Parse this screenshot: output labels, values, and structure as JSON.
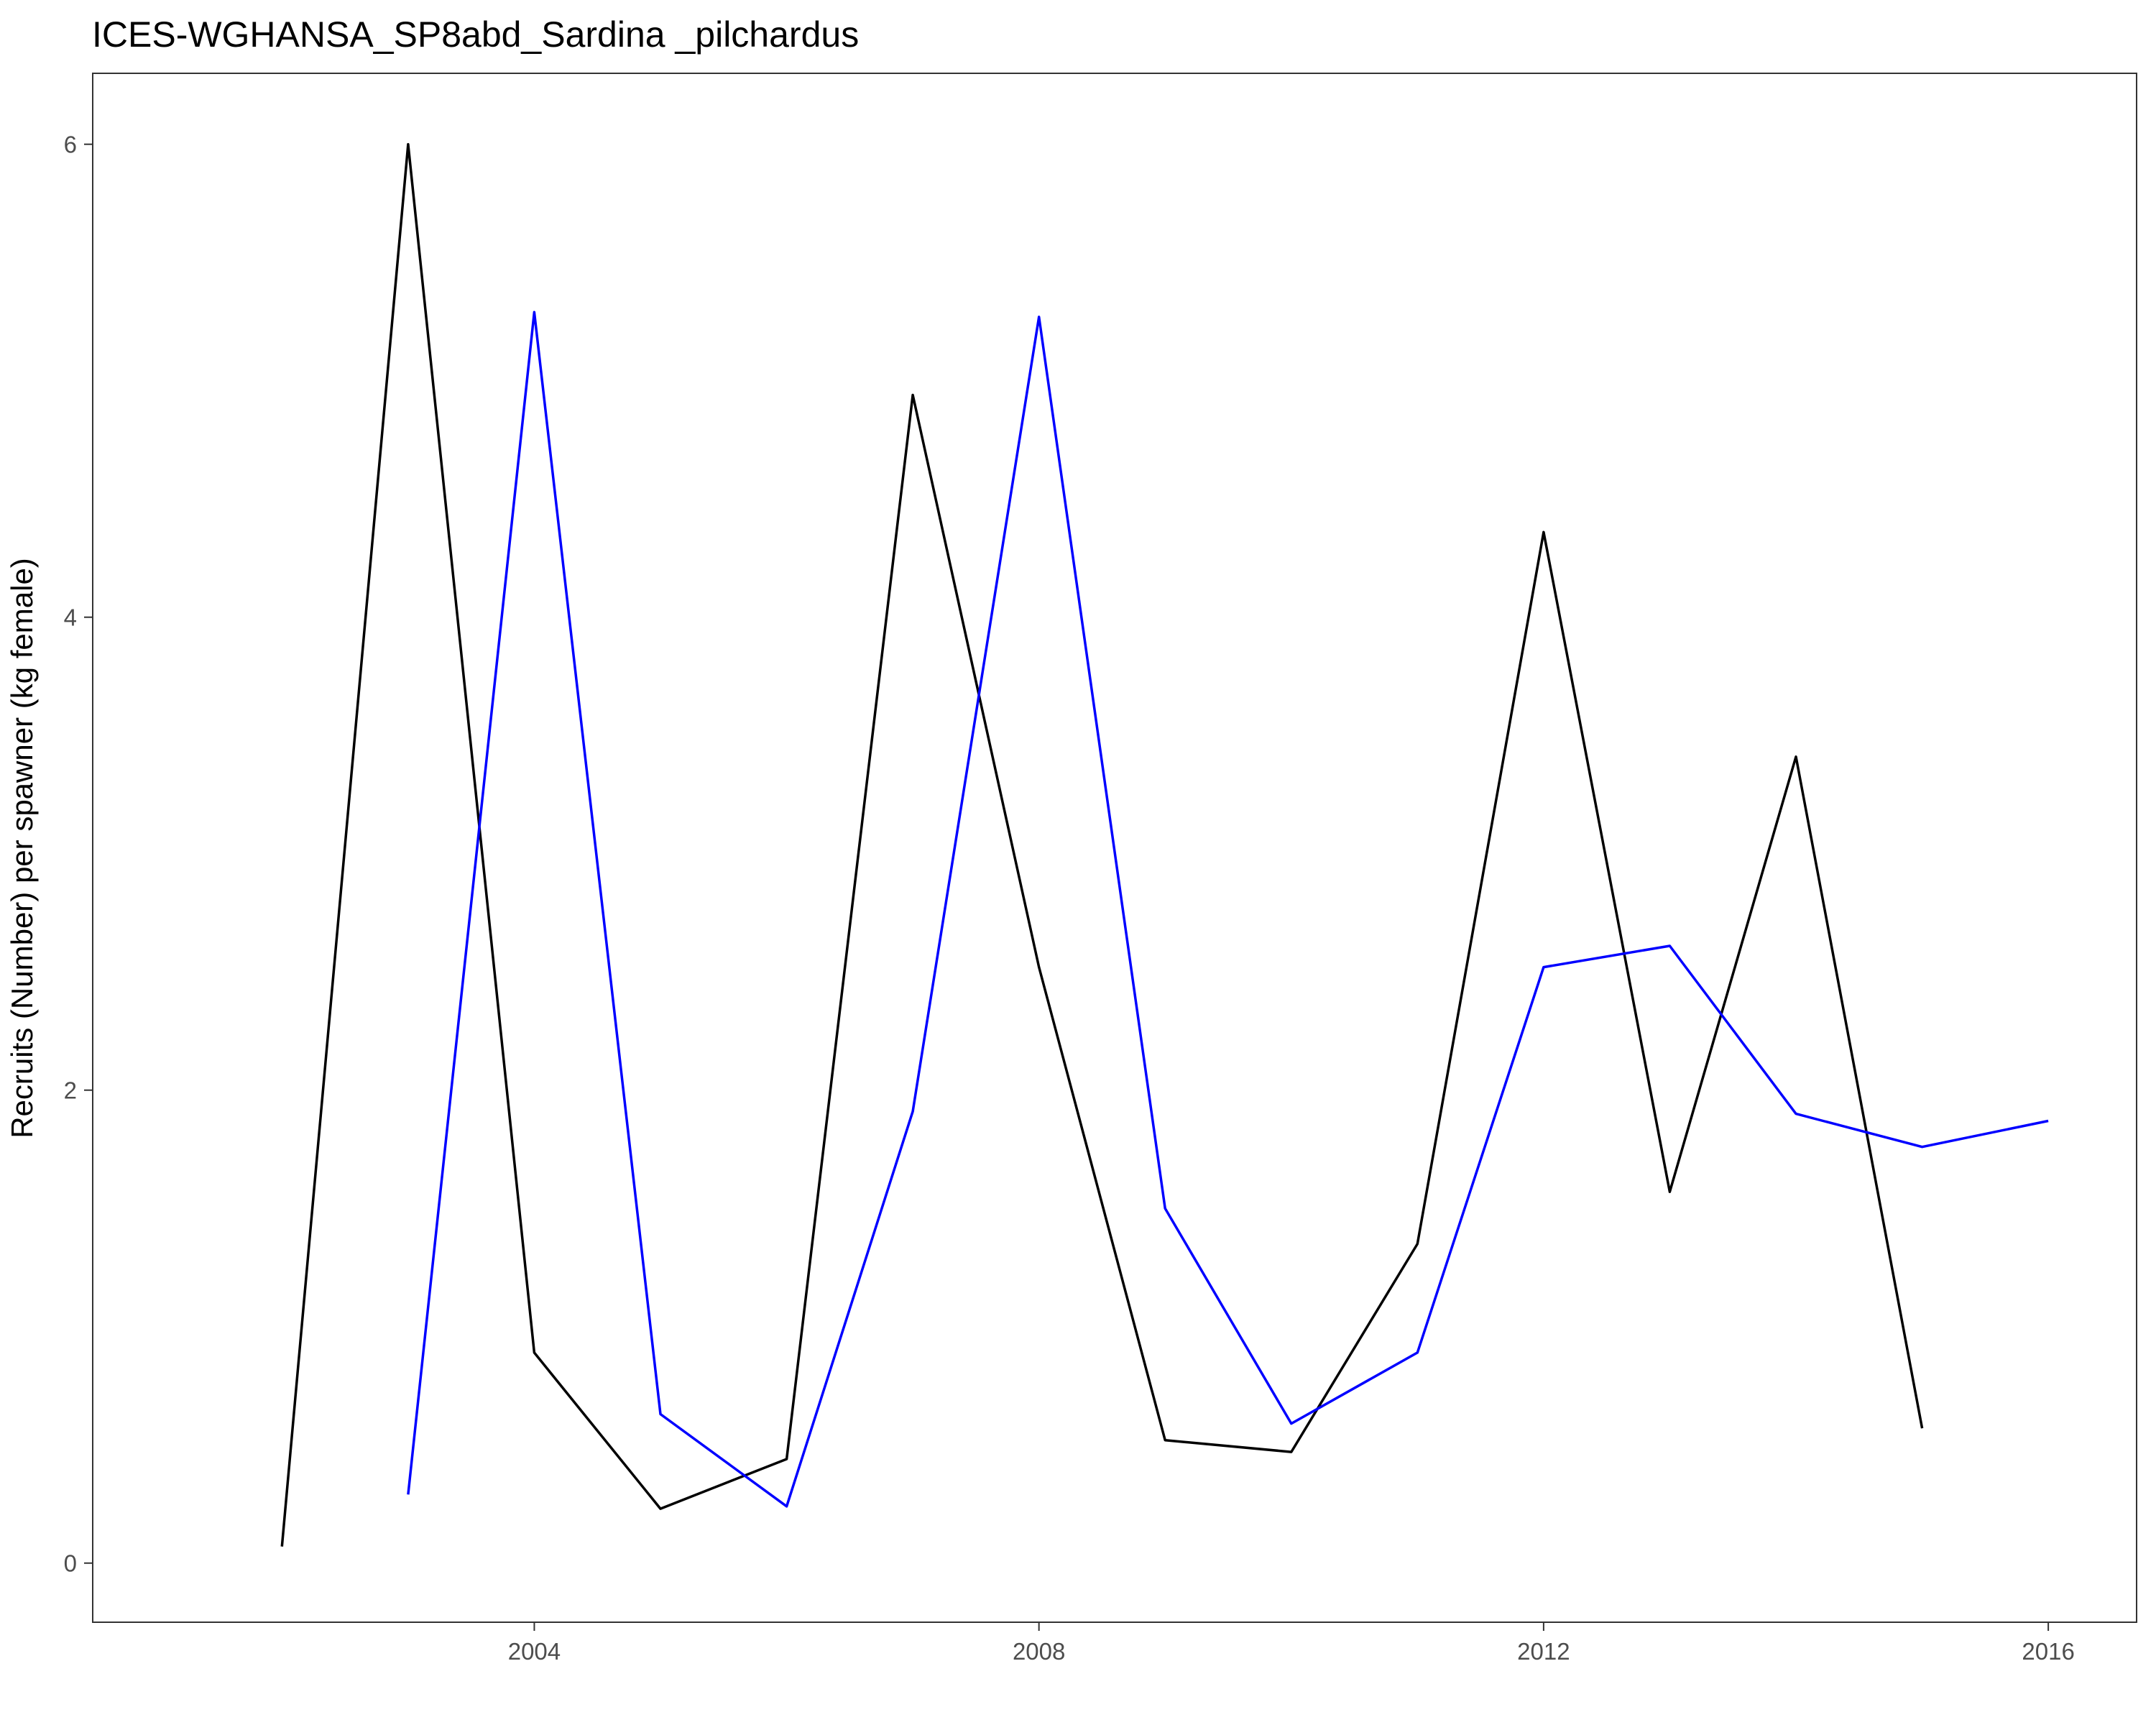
{
  "chart_data": {
    "type": "line",
    "title": "ICES-WGHANSA_SP8abd_Sardina _pilchardus",
    "xlabel": "",
    "ylabel": "Recruits (Number) per spawner (kg female)",
    "xlim": [
      2000.5,
      2016.7
    ],
    "ylim": [
      -0.25,
      6.3
    ],
    "x_ticks": [
      2004,
      2008,
      2012,
      2016
    ],
    "y_ticks": [
      0,
      2,
      4,
      6
    ],
    "grid": false,
    "legend": "none",
    "series": [
      {
        "color": "#000000",
        "points": [
          {
            "x": 2002,
            "y": 0.07
          },
          {
            "x": 2003,
            "y": 6.0
          },
          {
            "x": 2004,
            "y": 0.89
          },
          {
            "x": 2005,
            "y": 0.23
          },
          {
            "x": 2006,
            "y": 0.44
          },
          {
            "x": 2007,
            "y": 4.94
          },
          {
            "x": 2008,
            "y": 2.52
          },
          {
            "x": 2009,
            "y": 0.52
          },
          {
            "x": 2010,
            "y": 0.47
          },
          {
            "x": 2011,
            "y": 1.35
          },
          {
            "x": 2012,
            "y": 4.36
          },
          {
            "x": 2013,
            "y": 1.57
          },
          {
            "x": 2014,
            "y": 3.41
          },
          {
            "x": 2015,
            "y": 0.57
          }
        ]
      },
      {
        "color": "#0000ff",
        "points": [
          {
            "x": 2003,
            "y": 0.29
          },
          {
            "x": 2004,
            "y": 5.29
          },
          {
            "x": 2005,
            "y": 0.63
          },
          {
            "x": 2006,
            "y": 0.24
          },
          {
            "x": 2007,
            "y": 1.91
          },
          {
            "x": 2008,
            "y": 5.27
          },
          {
            "x": 2009,
            "y": 1.5
          },
          {
            "x": 2010,
            "y": 0.59
          },
          {
            "x": 2011,
            "y": 0.89
          },
          {
            "x": 2012,
            "y": 2.52
          },
          {
            "x": 2013,
            "y": 2.61
          },
          {
            "x": 2014,
            "y": 1.9
          },
          {
            "x": 2015,
            "y": 1.76
          },
          {
            "x": 2016,
            "y": 1.87
          }
        ]
      }
    ]
  }
}
